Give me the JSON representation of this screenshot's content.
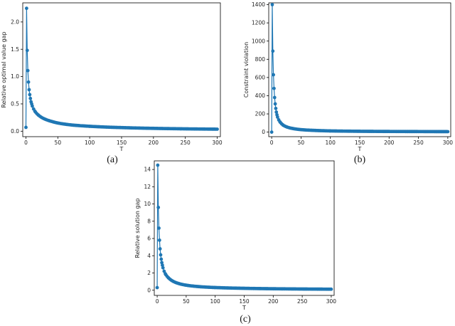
{
  "chart_data": [
    {
      "type": "line",
      "caption": "(a)",
      "xlabel": "T",
      "ylabel": "Relative optimal value gap",
      "xlim": [
        -5,
        305
      ],
      "ylim": [
        -0.1,
        2.35
      ],
      "xticks": [
        0,
        50,
        100,
        150,
        200,
        250,
        300
      ],
      "yticks": [
        0.0,
        0.5,
        1.0,
        1.5,
        2.0
      ],
      "ytick_labels": [
        "0.0",
        "0.5",
        "1.0",
        "1.5",
        "2.0"
      ],
      "color": "#1f77b4",
      "series": [
        {
          "x": [
            0,
            1,
            2,
            3,
            4,
            5,
            6,
            7,
            8,
            9,
            10,
            15,
            20,
            30,
            40,
            50,
            75,
            100,
            150,
            200,
            250,
            300
          ],
          "y": [
            0.07,
            2.25,
            1.48,
            1.11,
            0.9,
            0.76,
            0.67,
            0.6,
            0.54,
            0.5,
            0.46,
            0.35,
            0.29,
            0.22,
            0.18,
            0.15,
            0.11,
            0.09,
            0.066,
            0.052,
            0.043,
            0.037
          ]
        }
      ]
    },
    {
      "type": "line",
      "caption": "(b)",
      "xlabel": "T",
      "ylabel": "Constraint violation",
      "xlim": [
        -5,
        305
      ],
      "ylim": [
        -50,
        1420
      ],
      "xticks": [
        0,
        50,
        100,
        150,
        200,
        250,
        300
      ],
      "yticks": [
        0,
        200,
        400,
        600,
        800,
        1000,
        1200,
        1400
      ],
      "ytick_labels": [
        "0",
        "200",
        "400",
        "600",
        "800",
        "1000",
        "1200",
        "1400"
      ],
      "color": "#1f77b4",
      "series": [
        {
          "x": [
            0,
            1,
            2,
            3,
            4,
            5,
            6,
            7,
            8,
            9,
            10,
            15,
            20,
            30,
            40,
            50,
            75,
            100,
            150,
            200,
            250,
            300
          ],
          "y": [
            0,
            1400,
            890,
            630,
            480,
            380,
            310,
            260,
            220,
            190,
            165,
            105,
            75,
            48,
            35,
            27,
            18,
            13,
            9,
            7,
            6,
            5
          ]
        }
      ]
    },
    {
      "type": "line",
      "caption": "(c)",
      "xlabel": "T",
      "ylabel": "Relative solution gap",
      "xlim": [
        -5,
        305
      ],
      "ylim": [
        -0.6,
        15.0
      ],
      "xticks": [
        0,
        50,
        100,
        150,
        200,
        250,
        300
      ],
      "yticks": [
        0,
        2,
        4,
        6,
        8,
        10,
        12,
        14
      ],
      "ytick_labels": [
        "0",
        "2",
        "4",
        "6",
        "8",
        "10",
        "12",
        "14"
      ],
      "color": "#1f77b4",
      "series": [
        {
          "x": [
            0,
            1,
            2,
            3,
            4,
            5,
            6,
            7,
            8,
            9,
            10,
            15,
            20,
            30,
            40,
            50,
            75,
            100,
            150,
            200,
            250,
            300
          ],
          "y": [
            0.3,
            14.5,
            9.6,
            7.2,
            5.8,
            4.8,
            4.1,
            3.6,
            3.2,
            2.9,
            2.6,
            1.8,
            1.4,
            0.95,
            0.72,
            0.58,
            0.4,
            0.31,
            0.22,
            0.17,
            0.14,
            0.12
          ]
        }
      ]
    }
  ]
}
